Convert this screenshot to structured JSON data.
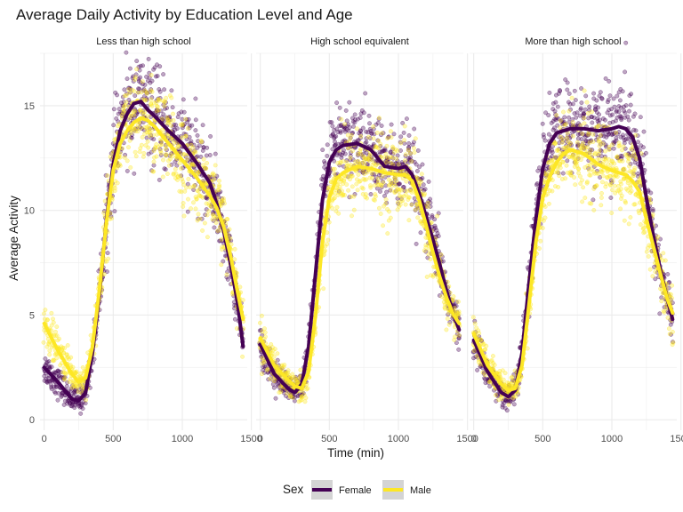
{
  "chart_data": {
    "type": "scatter",
    "title": "Average Daily Activity by Education Level and Age",
    "xlabel": "Time (min)",
    "ylabel": "Average Activity",
    "xlim": [
      -30,
      1470
    ],
    "ylim": [
      -0.5,
      17.5
    ],
    "x_ticks": [
      0,
      500,
      1000,
      1500
    ],
    "y_ticks": [
      0,
      5,
      10,
      15
    ],
    "grid": true,
    "legend": {
      "title": "Sex",
      "position": "bottom",
      "entries": [
        {
          "label": "Female",
          "color": "#440154"
        },
        {
          "label": "Male",
          "color": "#FDE725"
        }
      ]
    },
    "facets": [
      {
        "label": "Less than high school",
        "series": [
          {
            "name": "Female",
            "color": "#440154",
            "x": [
              0,
              100,
              200,
              250,
              300,
              350,
              400,
              450,
              500,
              550,
              600,
              650,
              700,
              750,
              800,
              900,
              1000,
              1100,
              1200,
              1250,
              1300,
              1350,
              1400,
              1440
            ],
            "y": [
              2.5,
              1.8,
              1.0,
              0.9,
              1.3,
              3.2,
              6.0,
              9.5,
              12.2,
              13.8,
              14.6,
              15.1,
              15.2,
              14.8,
              14.5,
              13.8,
              13.2,
              12.3,
              11.3,
              10.3,
              9.0,
              7.4,
              5.6,
              3.5
            ]
          },
          {
            "name": "Male",
            "color": "#FDE725",
            "x": [
              0,
              100,
              200,
              250,
              300,
              350,
              400,
              450,
              500,
              550,
              600,
              650,
              700,
              750,
              800,
              900,
              1000,
              1100,
              1200,
              1250,
              1300,
              1350,
              1400,
              1440
            ],
            "y": [
              4.6,
              3.3,
              2.2,
              1.8,
              2.0,
              3.5,
              6.2,
              9.4,
              11.9,
              13.2,
              13.8,
              14.2,
              14.4,
              14.3,
              14.0,
              13.2,
              12.4,
              11.6,
              10.7,
              10.1,
              9.2,
              7.8,
              6.1,
              4.8
            ]
          }
        ]
      },
      {
        "label": "High school equivalent",
        "series": [
          {
            "name": "Female",
            "color": "#440154",
            "x": [
              0,
              100,
              200,
              250,
              300,
              350,
              400,
              450,
              500,
              550,
              600,
              700,
              800,
              900,
              1000,
              1050,
              1100,
              1150,
              1200,
              1250,
              1300,
              1350,
              1400,
              1440
            ],
            "y": [
              3.6,
              2.2,
              1.5,
              1.3,
              1.7,
              3.5,
              7.0,
              10.5,
              12.3,
              12.9,
              13.1,
              13.2,
              12.9,
              12.1,
              12.0,
              12.1,
              11.7,
              10.8,
              9.7,
              8.6,
              7.4,
              6.1,
              5.0,
              4.3
            ]
          },
          {
            "name": "Male",
            "color": "#FDE725",
            "x": [
              0,
              100,
              200,
              250,
              300,
              350,
              400,
              450,
              500,
              550,
              600,
              700,
              800,
              900,
              1000,
              1050,
              1100,
              1150,
              1200,
              1250,
              1300,
              1350,
              1400,
              1440
            ],
            "y": [
              3.9,
              2.6,
              1.9,
              1.6,
              1.5,
              2.3,
              5.0,
              8.5,
              10.6,
              11.5,
              11.8,
              12.1,
              12.0,
              11.8,
              11.7,
              11.7,
              11.4,
              10.5,
              9.3,
              8.0,
              6.8,
              5.8,
              5.0,
              4.6
            ]
          }
        ]
      },
      {
        "label": "More than high school",
        "series": [
          {
            "name": "Female",
            "color": "#440154",
            "x": [
              0,
              100,
              200,
              250,
              300,
              350,
              400,
              450,
              500,
              550,
              600,
              650,
              700,
              800,
              900,
              1000,
              1050,
              1100,
              1150,
              1200,
              1250,
              1300,
              1350,
              1400,
              1440
            ],
            "y": [
              3.8,
              2.3,
              1.3,
              1.1,
              1.4,
              3.2,
              6.5,
              9.6,
              12.0,
              13.2,
              13.7,
              13.8,
              13.9,
              13.9,
              13.8,
              13.9,
              14.0,
              13.9,
              13.5,
              12.5,
              10.6,
              8.8,
              7.2,
              5.8,
              4.8
            ]
          },
          {
            "name": "Male",
            "color": "#FDE725",
            "x": [
              0,
              100,
              200,
              250,
              300,
              350,
              400,
              450,
              500,
              550,
              600,
              650,
              700,
              800,
              900,
              1000,
              1050,
              1100,
              1150,
              1200,
              1250,
              1300,
              1350,
              1400,
              1440
            ],
            "y": [
              4.1,
              2.6,
              1.7,
              1.4,
              1.5,
              2.6,
              5.5,
              8.5,
              10.6,
              11.6,
              12.3,
              12.7,
              12.9,
              12.7,
              12.2,
              11.9,
              11.8,
              11.7,
              11.4,
              10.9,
              9.6,
              8.3,
              7.0,
              5.8,
              5.1
            ]
          }
        ]
      }
    ]
  }
}
